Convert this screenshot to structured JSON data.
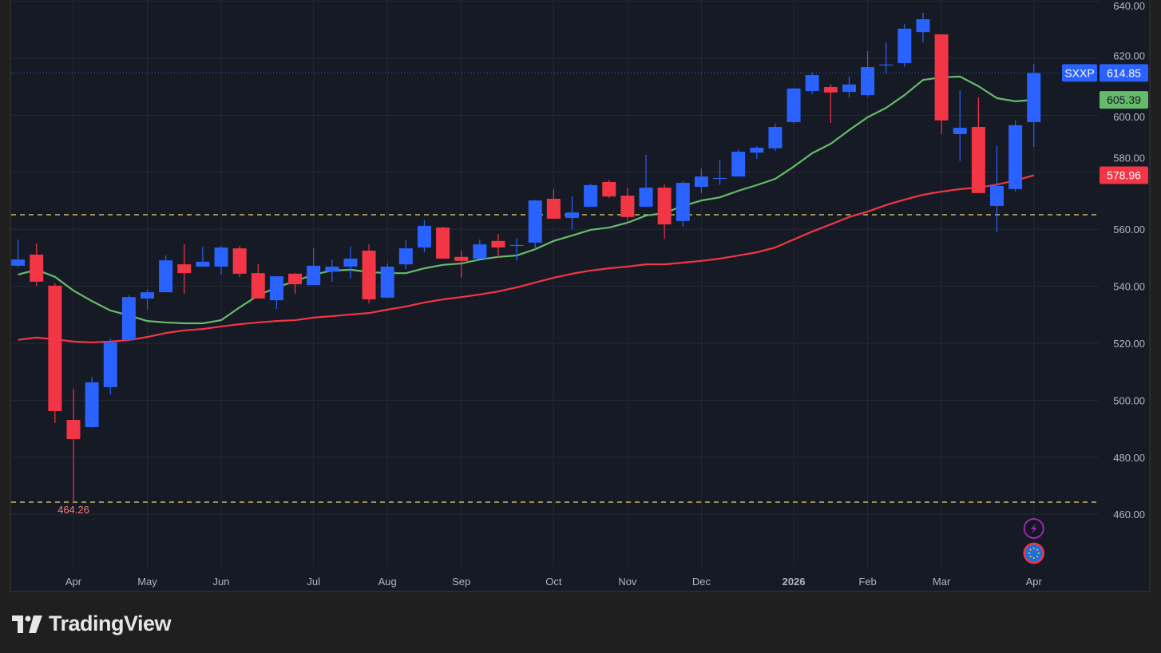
{
  "branding": {
    "logo_text": "TradingView"
  },
  "chart_data": {
    "type": "candlestick",
    "symbol": "SXXP",
    "interval": "weekly",
    "colors": {
      "up": "#2962ff",
      "down": "#f23645",
      "ma_fast": "#66bb6a",
      "ma_slow": "#f23645",
      "hline": "#e8dc6a",
      "background": "#161a25",
      "grid": "#242833"
    },
    "ylim": [
      450,
      641
    ],
    "y_ticks": [
      "460.00",
      "480.00",
      "500.00",
      "520.00",
      "540.00",
      "560.00",
      "580.00",
      "600.00",
      "620.00",
      "640.00"
    ],
    "x_labels": [
      {
        "label": "Apr",
        "index": 3,
        "bold": false
      },
      {
        "label": "May",
        "index": 7,
        "bold": false
      },
      {
        "label": "Jun",
        "index": 11,
        "bold": false
      },
      {
        "label": "Jul",
        "index": 16,
        "bold": false
      },
      {
        "label": "Aug",
        "index": 20,
        "bold": false
      },
      {
        "label": "Sep",
        "index": 24,
        "bold": false
      },
      {
        "label": "Oct",
        "index": 29,
        "bold": false
      },
      {
        "label": "Nov",
        "index": 33,
        "bold": false
      },
      {
        "label": "Dec",
        "index": 37,
        "bold": false
      },
      {
        "label": "2026",
        "index": 42,
        "bold": true
      },
      {
        "label": "Feb",
        "index": 46,
        "bold": false
      },
      {
        "label": "Mar",
        "index": 50,
        "bold": false
      },
      {
        "label": "Apr",
        "index": 55,
        "bold": false
      }
    ],
    "ohlc": [
      [
        547.2,
        556.4,
        546.6,
        549.4
      ],
      [
        551.1,
        555.0,
        540.2,
        541.6
      ],
      [
        540.2,
        541.0,
        492.0,
        496.2
      ],
      [
        493.1,
        504.0,
        464.26,
        486.4
      ],
      [
        490.6,
        508.2,
        490.4,
        506.3
      ],
      [
        504.6,
        521.7,
        502.0,
        520.3
      ],
      [
        521.1,
        536.8,
        520.7,
        536.2
      ],
      [
        535.7,
        538.8,
        531.8,
        537.9
      ],
      [
        537.9,
        550.8,
        537.9,
        549.1
      ],
      [
        547.7,
        554.7,
        537.4,
        544.6
      ],
      [
        546.9,
        553.9,
        546.9,
        548.6
      ],
      [
        546.9,
        554.2,
        544.0,
        553.6
      ],
      [
        553.3,
        554.2,
        543.2,
        544.4
      ],
      [
        544.6,
        547.7,
        535.7,
        535.7
      ],
      [
        535.1,
        543.5,
        532.0,
        543.5
      ],
      [
        544.4,
        544.6,
        537.4,
        540.7
      ],
      [
        540.4,
        553.3,
        540.4,
        547.2
      ],
      [
        545.1,
        549.4,
        541.6,
        546.9
      ],
      [
        546.9,
        553.9,
        542.7,
        549.7
      ],
      [
        552.5,
        554.7,
        534.0,
        535.4
      ],
      [
        536.0,
        548.0,
        536.0,
        546.9
      ],
      [
        547.7,
        556.1,
        546.0,
        553.3
      ],
      [
        553.6,
        563.1,
        551.9,
        561.2
      ],
      [
        560.6,
        560.9,
        549.7,
        549.7
      ],
      [
        550.3,
        552.5,
        543.0,
        548.9
      ],
      [
        549.7,
        556.4,
        549.7,
        554.7
      ],
      [
        555.9,
        558.4,
        550.0,
        553.6
      ],
      [
        554.5,
        557.0,
        549.0,
        554.5
      ],
      [
        555.3,
        570.4,
        553.0,
        570.1
      ],
      [
        570.7,
        574.0,
        563.7,
        563.7
      ],
      [
        564.0,
        571.5,
        560.0,
        565.9
      ],
      [
        567.9,
        576.0,
        567.9,
        575.5
      ],
      [
        576.6,
        577.4,
        571.0,
        571.5
      ],
      [
        571.8,
        574.6,
        562.9,
        564.3
      ],
      [
        567.9,
        586.1,
        567.9,
        574.6
      ],
      [
        574.6,
        575.7,
        556.7,
        561.7
      ],
      [
        562.9,
        576.9,
        560.9,
        576.3
      ],
      [
        574.9,
        581.3,
        572.7,
        578.5
      ],
      [
        578.0,
        584.4,
        575.5,
        578.0
      ],
      [
        578.5,
        588.1,
        578.5,
        587.2
      ],
      [
        586.9,
        589.2,
        584.7,
        588.6
      ],
      [
        588.4,
        597.0,
        587.5,
        595.9
      ],
      [
        597.6,
        609.6,
        597.0,
        609.4
      ],
      [
        608.5,
        615.0,
        607.4,
        614.1
      ],
      [
        609.9,
        610.8,
        597.3,
        608.0
      ],
      [
        608.2,
        613.6,
        606.3,
        610.8
      ],
      [
        607.1,
        622.5,
        606.6,
        616.9
      ],
      [
        617.8,
        625.6,
        614.7,
        617.8
      ],
      [
        618.3,
        632.0,
        617.0,
        630.4
      ],
      [
        629.2,
        636.0,
        625.6,
        633.7
      ],
      [
        628.4,
        628.4,
        593.4,
        598.2
      ],
      [
        593.4,
        608.8,
        583.9,
        595.6
      ],
      [
        595.9,
        606.3,
        572.7,
        572.7
      ],
      [
        568.2,
        589.2,
        558.9,
        575.2
      ],
      [
        574.1,
        598.2,
        573.2,
        596.5
      ],
      [
        597.6,
        618.0,
        588.9,
        614.85
      ]
    ],
    "ma_fast": [
      544.1,
      545.8,
      543.3,
      538.5,
      534.8,
      531.5,
      529.8,
      527.8,
      527.3,
      527.0,
      527.0,
      528.1,
      532.6,
      536.8,
      539.6,
      541.8,
      544.1,
      545.5,
      545.8,
      545.0,
      544.6,
      544.6,
      546.3,
      547.5,
      548.0,
      549.4,
      550.3,
      550.8,
      553.0,
      555.9,
      557.8,
      559.8,
      560.6,
      562.3,
      564.8,
      565.7,
      568.2,
      570.1,
      571.2,
      573.5,
      575.5,
      577.7,
      582.0,
      586.7,
      590.0,
      594.8,
      599.3,
      602.6,
      607.1,
      612.4,
      613.3,
      613.6,
      610.2,
      606.0,
      604.9,
      605.39
    ],
    "ma_slow": [
      521.2,
      522.0,
      521.4,
      520.6,
      520.3,
      520.6,
      521.1,
      522.2,
      523.6,
      524.5,
      525.0,
      525.9,
      526.7,
      527.3,
      527.8,
      528.1,
      529.0,
      529.5,
      530.1,
      530.6,
      531.8,
      532.9,
      534.3,
      535.4,
      536.2,
      537.1,
      538.2,
      539.6,
      541.3,
      543.0,
      544.4,
      545.5,
      546.3,
      546.9,
      547.7,
      547.7,
      548.3,
      548.9,
      549.7,
      550.8,
      551.9,
      553.6,
      556.4,
      559.2,
      561.7,
      564.3,
      566.2,
      568.5,
      570.4,
      572.1,
      573.2,
      574.1,
      574.6,
      575.7,
      577.1,
      578.96
    ],
    "horizontal_lines": [
      565.1,
      464.26
    ],
    "low_marker": {
      "label": "464.26",
      "index": 3
    },
    "price_labels": {
      "last": {
        "symbol": "SXXP",
        "value": "614.85",
        "price": 614.85
      },
      "ma_fast": {
        "value": "605.39",
        "price": 605.39
      },
      "ma_slow": {
        "value": "578.96",
        "price": 578.96
      }
    },
    "event_icons": [
      {
        "name": "lightning-icon",
        "color": "#9c27b0"
      },
      {
        "name": "eu-flag-icon",
        "color": "#1e6fd9"
      }
    ]
  }
}
